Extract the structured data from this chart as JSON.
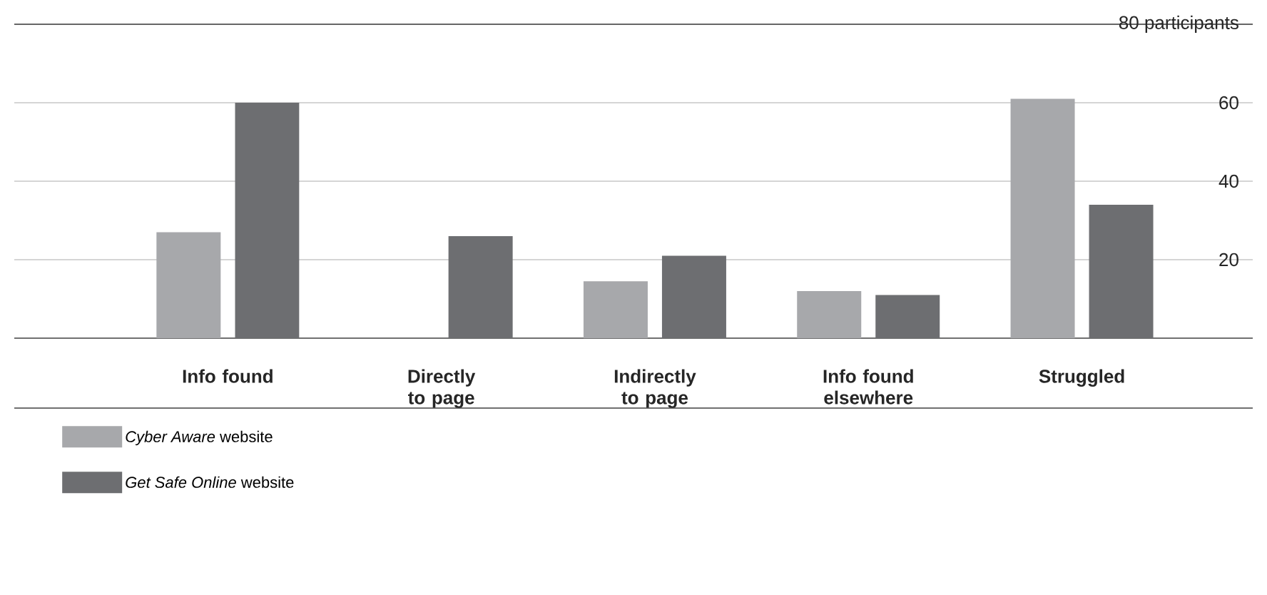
{
  "chart_data": {
    "type": "bar",
    "categories": [
      "Info found",
      "Directly to page",
      "Indirectly to page",
      "Info found elsewhere",
      "Struggled"
    ],
    "series": [
      {
        "name": "*Cyber Aware* website",
        "color": "#a7a8ab",
        "values": [
          27,
          0,
          14.5,
          12,
          61
        ]
      },
      {
        "name": "*Get Safe Online* website",
        "color": "#6d6e71",
        "values": [
          60,
          26,
          21,
          11,
          34
        ]
      }
    ],
    "ylim": [
      0,
      80
    ],
    "yticks": [
      20,
      40,
      60,
      {
        "value": 80,
        "label": "80 participants"
      }
    ],
    "grid": "y",
    "legend": "bottom left"
  }
}
